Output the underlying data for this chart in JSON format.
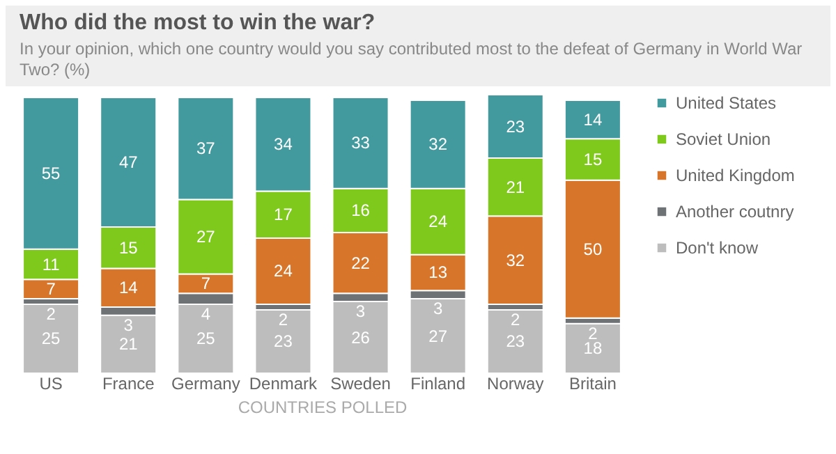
{
  "chart_data": {
    "type": "bar",
    "stacked": true,
    "data_labels": true,
    "legend": "right",
    "grid": false,
    "title": "Who did the most to win the war?",
    "subtitle": "In your opinion, which one country would you say contributed most to the defeat of Germany in World War Two? (%)",
    "xlabel": "COUNTRIES POLLED",
    "categories": [
      "US",
      "France",
      "Germany",
      "Denmark",
      "Sweden",
      "Finland",
      "Norway",
      "Britain"
    ],
    "series": [
      {
        "name": "Don't know",
        "color": "#bdbdbd",
        "values": [
          25,
          21,
          25,
          23,
          26,
          27,
          23,
          18
        ]
      },
      {
        "name": "Another coutnry",
        "color": "#6e7275",
        "values": [
          2,
          3,
          4,
          2,
          3,
          3,
          2,
          2
        ]
      },
      {
        "name": "United Kingdom",
        "color": "#d7762a",
        "values": [
          7,
          14,
          7,
          24,
          22,
          13,
          32,
          50
        ]
      },
      {
        "name": "Soviet Union",
        "color": "#7fc91c",
        "values": [
          11,
          15,
          27,
          17,
          16,
          24,
          21,
          15
        ]
      },
      {
        "name": "United States",
        "color": "#429a9e",
        "values": [
          55,
          47,
          37,
          34,
          33,
          32,
          23,
          14
        ]
      }
    ]
  }
}
